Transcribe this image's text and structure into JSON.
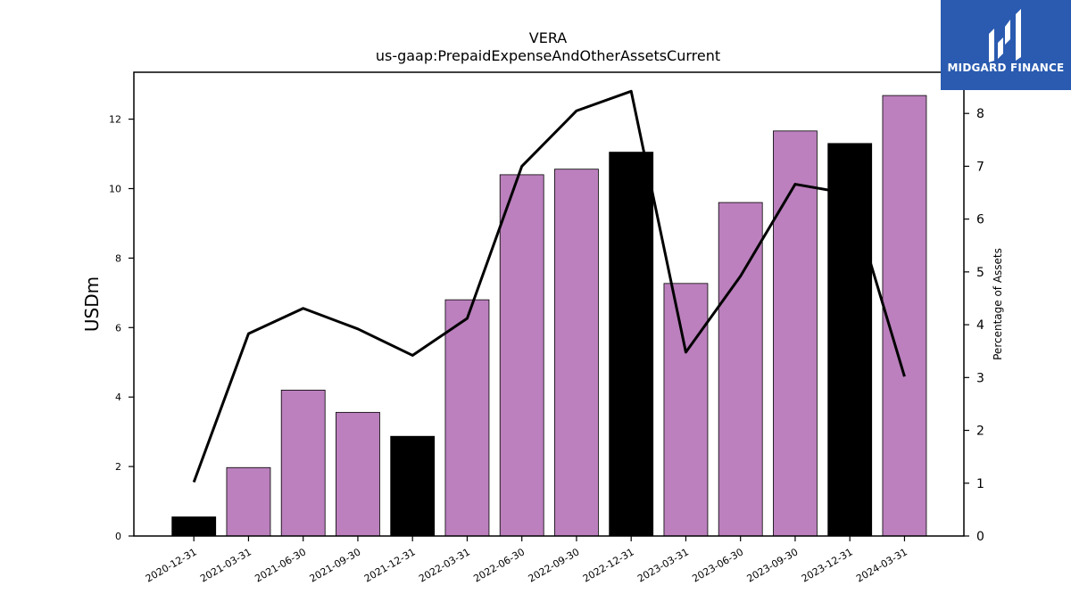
{
  "chart_data": {
    "type": "bar",
    "title": "VERA",
    "subtitle": "us-gaap:PrepaidExpenseAndOtherAssetsCurrent",
    "ylabel": "USDm",
    "y2label": "Percentage of Assets",
    "categories": [
      "2020-12-31",
      "2021-03-31",
      "2021-06-30",
      "2021-09-30",
      "2021-12-31",
      "2022-03-31",
      "2022-06-30",
      "2022-09-30",
      "2022-12-31",
      "2023-03-31",
      "2023-06-30",
      "2023-09-30",
      "2023-12-31",
      "2024-03-31"
    ],
    "values": [
      0.55,
      1.97,
      4.2,
      3.56,
      2.87,
      6.8,
      10.4,
      10.56,
      11.05,
      7.27,
      9.6,
      11.66,
      11.3,
      12.68
    ],
    "bar_colors": [
      "#000000",
      "#bb80bd",
      "#bb80bd",
      "#bb80bd",
      "#000000",
      "#bb80bd",
      "#bb80bd",
      "#bb80bd",
      "#000000",
      "#bb80bd",
      "#bb80bd",
      "#bb80bd",
      "#000000",
      "#bb80bd"
    ],
    "line_values": [
      1.02,
      3.83,
      4.31,
      3.92,
      3.42,
      4.12,
      7.0,
      8.05,
      8.42,
      3.48,
      4.92,
      6.66,
      6.48,
      3.02
    ],
    "ylim": [
      0,
      13.35
    ],
    "y2lim": [
      0,
      8.78
    ],
    "yticks": [
      0,
      2,
      4,
      6,
      8,
      10,
      12
    ],
    "y2ticks": [
      0,
      1,
      2,
      3,
      4,
      5,
      6,
      7,
      8
    ],
    "grid": false,
    "line_color": "#000000"
  },
  "logo": {
    "text": "MIDGARD FINANCE",
    "color": "#2a5bb0"
  }
}
